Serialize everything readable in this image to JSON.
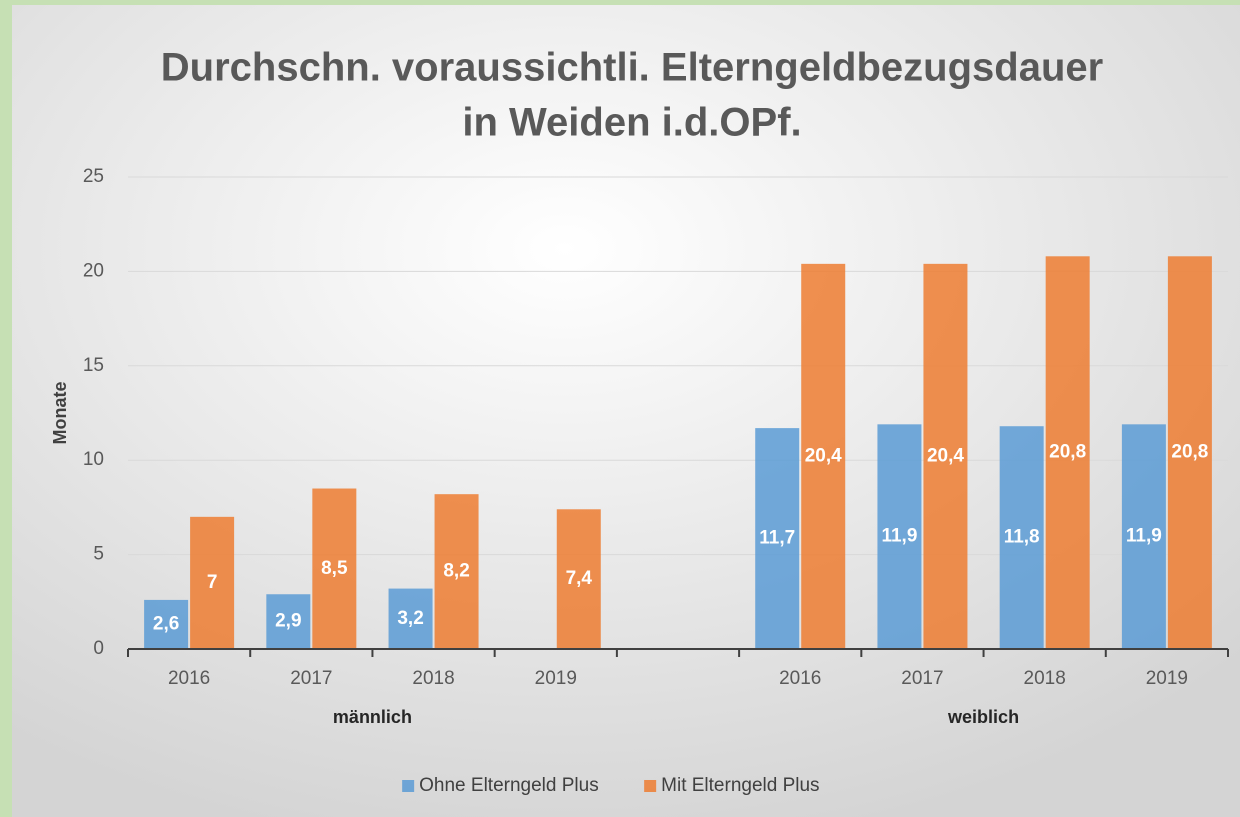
{
  "chart_data": {
    "type": "bar",
    "title": [
      "Durchschn. voraussichtli. Elterngeldbezugsdauer",
      "in Weiden i.d.OPf."
    ],
    "y_label": "Monate",
    "categories": [
      "2016",
      "2017",
      "2018",
      "2019",
      null,
      "2016",
      "2017",
      "2018",
      "2019"
    ],
    "groups": [
      "männlich",
      "weiblich"
    ],
    "series": [
      {
        "name": "Ohne Elterngeld Plus",
        "color": "#5b9bd5",
        "values": [
          2.6,
          2.9,
          3.2,
          null,
          null,
          11.7,
          11.9,
          11.8,
          11.9
        ],
        "value_labels": [
          "2,6",
          "2,9",
          "3,2",
          null,
          null,
          "11,7",
          "11,9",
          "11,8",
          "11,9"
        ]
      },
      {
        "name": "Mit Elterngeld Plus",
        "color": "#ed7d31",
        "values": [
          7,
          8.5,
          8.2,
          7.4,
          null,
          20.4,
          20.4,
          20.8,
          20.8
        ],
        "value_labels": [
          "7",
          "8,5",
          "8,2",
          "7,4",
          null,
          "20,4",
          "20,4",
          "20,8",
          "20,8"
        ]
      }
    ],
    "ylim": [
      0,
      25
    ],
    "yticks": [
      0,
      5,
      10,
      15,
      20,
      25
    ],
    "grid": true,
    "legend": "bottom"
  }
}
